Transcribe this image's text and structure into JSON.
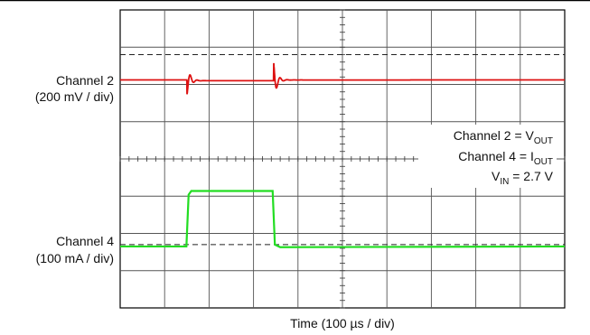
{
  "chart_data": {
    "type": "line",
    "title": "",
    "xlabel": "Time (100 µs / div)",
    "divisions": {
      "x": 10,
      "y": 8
    },
    "grid": true,
    "channels": [
      {
        "name": "Channel 2",
        "scale": "(200 mV / div)",
        "signal": "V_OUT",
        "color": "#dd1111",
        "baseline_div": 6.12,
        "reference_level_div": 6.8,
        "load_step_up_time_div": 1.5,
        "load_step_down_time_div": 3.45,
        "undershoot_div": -0.42,
        "overshoot_div": 0.55
      },
      {
        "name": "Channel 4",
        "scale": "(100 mA / div)",
        "signal": "I_OUT",
        "color": "#22dd22",
        "low_level_div": 1.65,
        "high_level_div": 3.14,
        "reference_level_div": 1.7,
        "step_up_time_div": 1.5,
        "step_down_time_div": 3.45
      }
    ],
    "annotations": {
      "ch2_base": "Channel 2 = V",
      "ch2_sub": "OUT",
      "ch4_base": "Channel 4 = I",
      "ch4_sub": "OUT",
      "vin_base": "V",
      "vin_sub": "IN",
      "vin_value": " = 2.7 V"
    }
  }
}
